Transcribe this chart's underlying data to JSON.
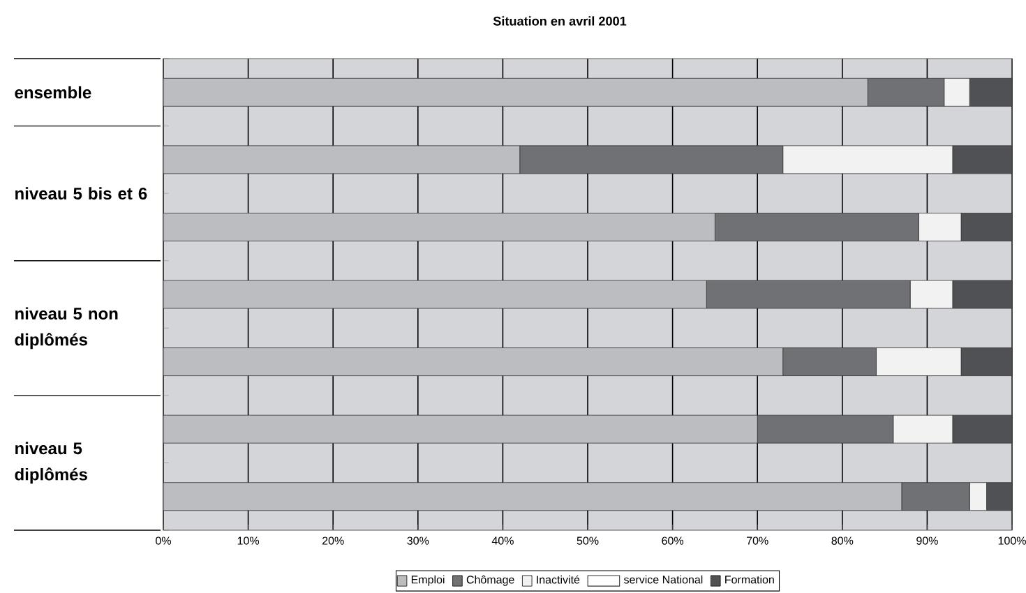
{
  "chart_data": {
    "type": "bar",
    "orientation": "horizontal",
    "stacked": true,
    "title": "Situation en avril 2001",
    "categories": [
      "ensemble",
      "niveau 5 bis et 6",
      null,
      "niveau 5 non diplômés",
      null,
      "niveau 5 diplômés",
      null
    ],
    "series": [
      {
        "name": "Emploi",
        "color": "#bcbdc1",
        "values": [
          83,
          42,
          65,
          64,
          73,
          70,
          87
        ]
      },
      {
        "name": "Chômage",
        "color": "#707174",
        "values": [
          9,
          31,
          24,
          24,
          11,
          16,
          8
        ]
      },
      {
        "name": "Inactivité",
        "color": "#f2f2f2",
        "values": [
          3,
          20,
          5,
          5,
          10,
          7,
          2
        ]
      },
      {
        "name": "service National",
        "color": "#ffffff",
        "values": [
          null,
          null,
          null,
          null,
          null,
          null,
          null
        ]
      },
      {
        "name": "Formation",
        "color": "#505154",
        "values": [
          5,
          7,
          6,
          7,
          6,
          7,
          3
        ]
      }
    ],
    "xlim": [
      0,
      100
    ],
    "xticks": [
      {
        "value": 0,
        "label": "0%"
      },
      {
        "value": 10,
        "label": "10%"
      },
      {
        "value": 20,
        "label": "20%"
      },
      {
        "value": 30,
        "label": "30%"
      },
      {
        "value": 40,
        "label": "40%"
      },
      {
        "value": 50,
        "label": "50%"
      },
      {
        "value": 60,
        "label": "60%"
      },
      {
        "value": 70,
        "label": "70%"
      },
      {
        "value": 80,
        "label": "80%"
      },
      {
        "value": 90,
        "label": "90%"
      },
      {
        "value": 100,
        "label": "100%"
      }
    ],
    "grid": "x",
    "legend": "bottom"
  }
}
